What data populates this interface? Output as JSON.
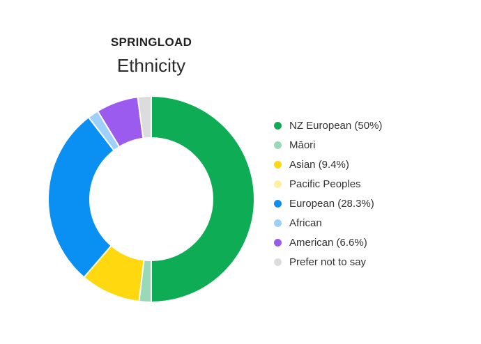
{
  "header": {
    "brand": "SPRINGLOAD",
    "title": "Ethnicity"
  },
  "chart_data": {
    "type": "pie",
    "donut": true,
    "title": "Ethnicity",
    "legend_position": "right",
    "slices": [
      {
        "label": "NZ European (50%)",
        "value": 50.0,
        "color": "#0ead55"
      },
      {
        "label": "Māori",
        "value": 1.9,
        "color": "#9ad9b5"
      },
      {
        "label": "Asian (9.4%)",
        "value": 9.4,
        "color": "#ffd80f"
      },
      {
        "label": "Pacific Peoples",
        "value": 0.0,
        "color": "#fff0a0"
      },
      {
        "label": "European (28.3%)",
        "value": 28.3,
        "color": "#0a8ff2"
      },
      {
        "label": "African",
        "value": 1.7,
        "color": "#9dd0fb"
      },
      {
        "label": "American (6.6%)",
        "value": 6.6,
        "color": "#9b5bef"
      },
      {
        "label": "Prefer not to say",
        "value": 2.1,
        "color": "#dcdcdc"
      }
    ]
  }
}
